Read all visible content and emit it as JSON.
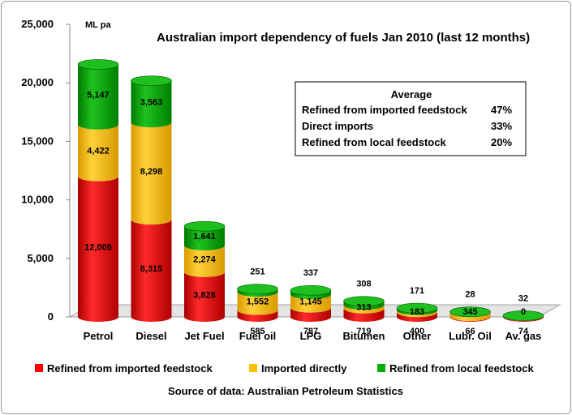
{
  "chart_data": {
    "type": "bar",
    "stacked": true,
    "title": "Australian import dependency of fuels Jan 2010 (last 12 months)",
    "unit_label": "ML pa",
    "source": "Source of data: Australian Petroleum Statistics",
    "ylim": [
      0,
      25000
    ],
    "yticks": [
      0,
      5000,
      10000,
      15000,
      20000,
      25000
    ],
    "ytick_labels": [
      "0",
      "5,000",
      "10,000",
      "15,000",
      "20,000",
      "25,000"
    ],
    "categories": [
      "Petrol",
      "Diesel",
      "Jet Fuel",
      "Fuel oil",
      "LPG",
      "Bitumen",
      "Other",
      "Lubr. Oil",
      "Av. gas"
    ],
    "series": [
      {
        "name": "Refined from imported feedstock",
        "color": "#ff0000",
        "values": [
          12009,
          8315,
          3828,
          585,
          787,
          719,
          400,
          66,
          74
        ],
        "labels": [
          "12,009",
          "8,315",
          "3,828",
          "585",
          "787",
          "719",
          "400",
          "66",
          "74"
        ]
      },
      {
        "name": "Imported directly",
        "color": "#ffc000",
        "values": [
          4422,
          8298,
          2274,
          1552,
          1145,
          313,
          183,
          345,
          0
        ],
        "labels": [
          "4,422",
          "8,298",
          "2,274",
          "1,552",
          "1,145",
          "313",
          "183",
          "345",
          "0"
        ]
      },
      {
        "name": "Refined from local feedstock",
        "color": "#00b000",
        "values": [
          5147,
          3563,
          1641,
          251,
          337,
          308,
          171,
          28,
          32
        ],
        "labels": [
          "5,147",
          "3,563",
          "1,641",
          "251",
          "337",
          "308",
          "171",
          "28",
          "32"
        ]
      }
    ],
    "average_box": {
      "heading": "Average",
      "rows": [
        {
          "label": "Refined from imported feedstock",
          "value": "47%"
        },
        {
          "label": "Direct imports",
          "value": "33%"
        },
        {
          "label": "Refined from local feedstock",
          "value": "20%"
        }
      ]
    },
    "grid": false,
    "legend_position": "bottom"
  }
}
